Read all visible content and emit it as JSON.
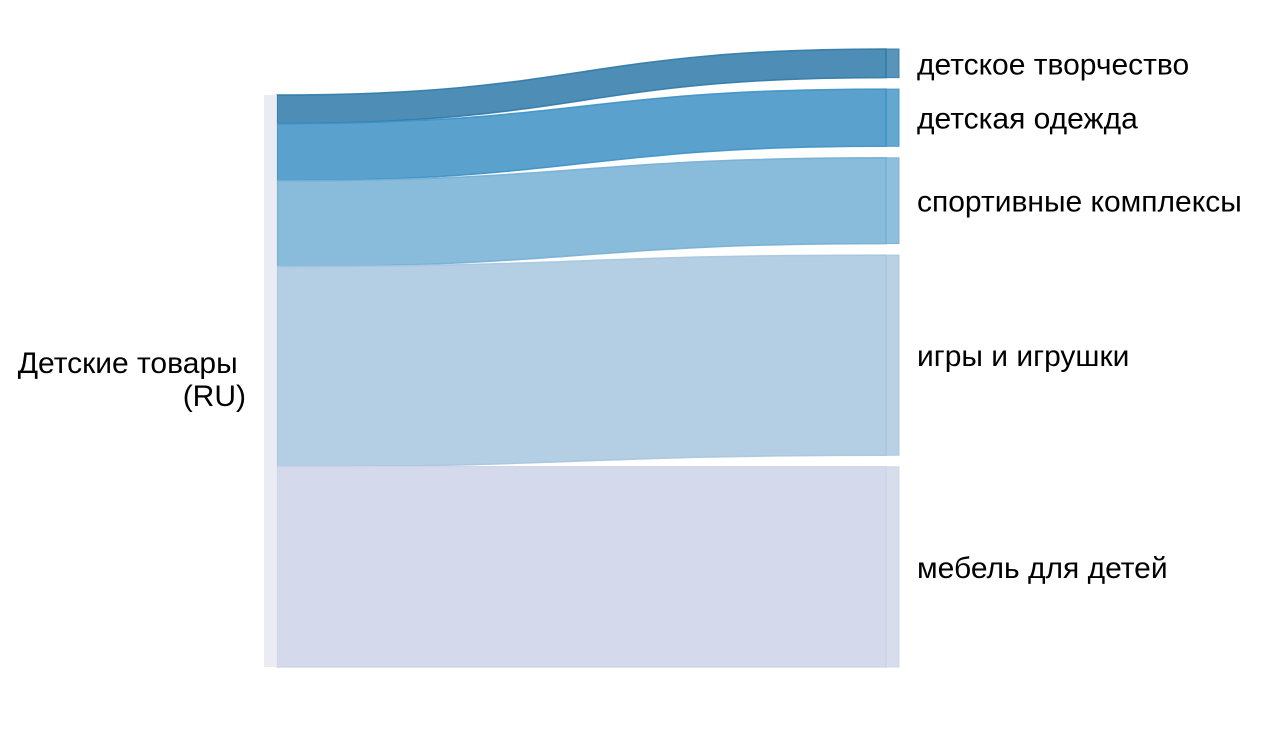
{
  "diagram": {
    "type": "sankey",
    "source": {
      "label_lines": [
        "Детские товары",
        "(RU)"
      ]
    },
    "targets": [
      {
        "label": "детское творчество",
        "value": 5,
        "color": "#2f79a8"
      },
      {
        "label": "детская одежда",
        "value": 10,
        "color": "#3d91c5"
      },
      {
        "label": "спортивные комплексы",
        "value": 15,
        "color": "#74afd4"
      },
      {
        "label": "игры и игрушки",
        "value": 35,
        "color": "#a7c5df"
      },
      {
        "label": "мебель для детей",
        "value": 35,
        "color": "#cdd4e7"
      }
    ]
  }
}
